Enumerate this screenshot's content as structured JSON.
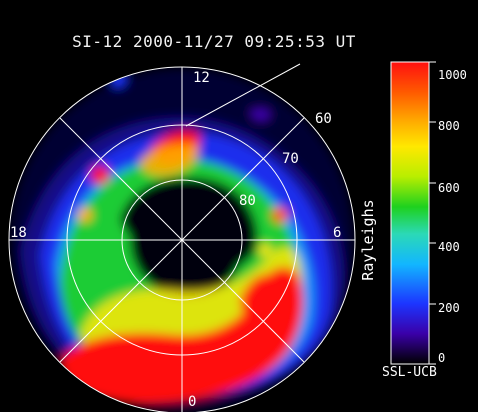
{
  "title": "SI-12 2000-11/27 09:25:53 UT",
  "polar_labels": {
    "top": "12",
    "left": "18",
    "right": "6",
    "bottom": "0"
  },
  "latitude_labels": [
    "60",
    "70",
    "80"
  ],
  "colorbar": {
    "label": "Rayleighs",
    "min": 0,
    "max": 1000,
    "ticks": [
      "1000",
      "800",
      "600",
      "400",
      "200",
      "0"
    ],
    "colors": [
      "#000000",
      "#3a00a8",
      "#1c35ff",
      "#12b6ff",
      "#2bd9b7",
      "#1ed11e",
      "#b8ee00",
      "#ffe800",
      "#ffae00",
      "#ff5a00",
      "#ff1010"
    ]
  },
  "credit": "SSL-UCB"
}
